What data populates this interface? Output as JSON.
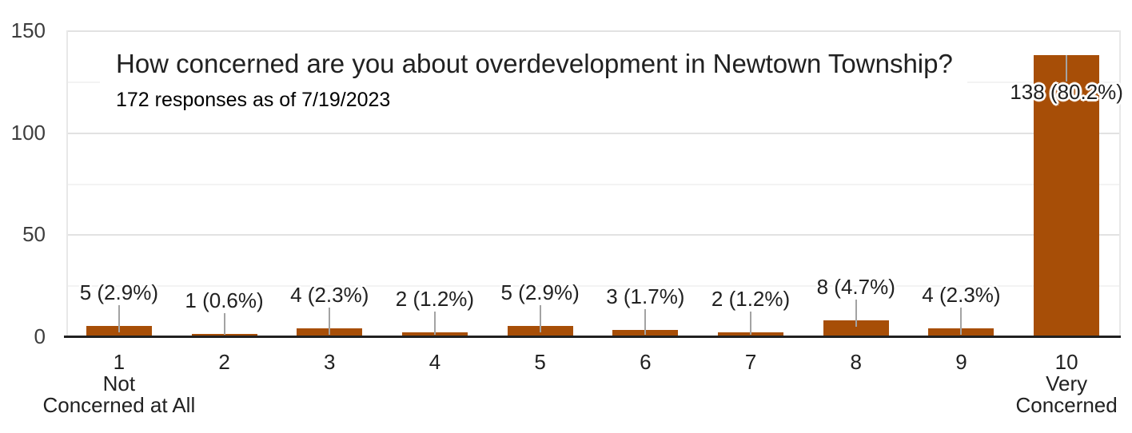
{
  "page": {
    "background": "#ffffff"
  },
  "chart_data": {
    "type": "bar",
    "title": "How concerned are you about overdevelopment in Newtown Township?",
    "subtitle": "172 responses as of 7/19/2023",
    "total_responses": 172,
    "as_of_date": "7/19/2023",
    "categories": [
      "1",
      "2",
      "3",
      "4",
      "5",
      "6",
      "7",
      "8",
      "9",
      "10"
    ],
    "category_sublabels": [
      [
        "Not",
        "Concerned at All"
      ],
      [],
      [],
      [],
      [],
      [],
      [],
      [],
      [],
      [
        "Very",
        "Concerned"
      ]
    ],
    "values": [
      5,
      1,
      4,
      2,
      5,
      3,
      2,
      8,
      4,
      138
    ],
    "percent": [
      2.9,
      0.6,
      2.3,
      1.2,
      2.9,
      1.7,
      1.2,
      4.7,
      2.3,
      80.2
    ],
    "value_labels": [
      "5 (2.9%)",
      "1 (0.6%)",
      "4 (2.3%)",
      "2 (1.2%)",
      "5 (2.9%)",
      "3 (1.7%)",
      "2 (1.2%)",
      "8 (4.7%)",
      "4 (2.3%)",
      "138 (80.2%)"
    ],
    "xlabel": "",
    "ylabel": "",
    "ylim": [
      0,
      150
    ],
    "yticks": [
      0,
      50,
      100,
      150
    ],
    "minor_gridlines": [
      25,
      75,
      125
    ],
    "grid": true,
    "legend": "none",
    "colors": {
      "bar": "#a74e07",
      "title_text": "#212121",
      "subtitle_text": "#000000",
      "label_text": "#212121",
      "axis_text": "#3d3d3d",
      "axis_line": "#212121",
      "gridline_major": "#e2e2e2",
      "gridline_minor": "#f3f3f3",
      "annotation_stem": "#a3a3a3",
      "background": "#ffffff"
    }
  }
}
